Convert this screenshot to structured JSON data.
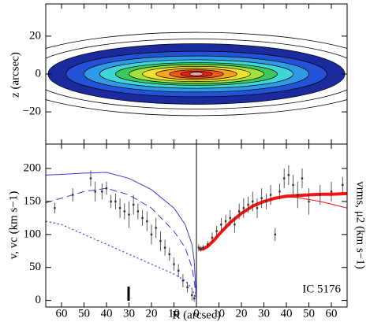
{
  "chart_data": [
    {
      "type": "contour",
      "ylabel": "z (arcsec)",
      "xlim": [
        -67,
        67
      ],
      "xticks": [
        -60,
        -50,
        -40,
        -30,
        -20,
        -10,
        0,
        10,
        20,
        30,
        40,
        50,
        60
      ],
      "ylim": [
        -37,
        37
      ],
      "yticks": [
        {
          "value": -20,
          "label": "−20"
        },
        0,
        20
      ],
      "isophotes": [
        {
          "a": 66,
          "b": 16,
          "color": "#1b2a9c"
        },
        {
          "a": 58,
          "b": 12,
          "color": "#2452d6"
        },
        {
          "a": 50,
          "b": 9.5,
          "color": "#2f9be6"
        },
        {
          "a": 43,
          "b": 7.5,
          "color": "#3fd6d8"
        },
        {
          "a": 36,
          "b": 6,
          "color": "#3cc85c"
        },
        {
          "a": 30,
          "b": 5,
          "color": "#a4e03c"
        },
        {
          "a": 24,
          "b": 4,
          "color": "#f2e02e"
        },
        {
          "a": 18,
          "b": 3,
          "color": "#f3a222"
        },
        {
          "a": 12,
          "b": 2.2,
          "color": "#f0561e"
        },
        {
          "a": 7,
          "b": 1.5,
          "color": "#e42012"
        },
        {
          "a": 3,
          "b": 0.9,
          "color": "#f2a6a6"
        }
      ],
      "contours": [
        {
          "a": 85,
          "b": 22
        },
        {
          "a": 75,
          "b": 18.5
        }
      ]
    },
    {
      "type": "line",
      "xlabel": "R (arcsec)",
      "ylabel": "v, vc (km s−1)",
      "y2label": "vrms, μ2 (km s−1)",
      "annotation": "IC 5176",
      "xlim": [
        -67,
        67
      ],
      "xticks": [
        {
          "value": -60,
          "label": "60"
        },
        {
          "value": -50,
          "label": "50"
        },
        {
          "value": -40,
          "label": "40"
        },
        {
          "value": -30,
          "label": "30"
        },
        {
          "value": -20,
          "label": "20"
        },
        {
          "value": -10,
          "label": "10"
        },
        0,
        10,
        20,
        30,
        40,
        50,
        60
      ],
      "ylim": [
        -10,
        237
      ],
      "yticks": [
        0,
        50,
        100,
        150,
        200
      ],
      "series": [
        {
          "style": "solid",
          "color": "#3a3ad8",
          "width": 1,
          "x": [
            -67,
            -60,
            -50,
            -40,
            -30,
            -20,
            -10,
            -5,
            -2,
            -1,
            0
          ],
          "values": [
            190,
            191,
            193,
            194,
            185,
            168,
            140,
            115,
            85,
            60,
            0
          ]
        },
        {
          "style": "dashed",
          "color": "#3a3ad8",
          "width": 1,
          "x": [
            -67,
            -60,
            -50,
            -40,
            -30,
            -20,
            -10,
            -5,
            -2,
            -1,
            0
          ],
          "values": [
            148,
            155,
            165,
            170,
            160,
            140,
            105,
            80,
            50,
            30,
            0
          ]
        },
        {
          "style": "dotted",
          "color": "#3a3ad8",
          "width": 1.2,
          "x": [
            -67,
            -60,
            -50,
            -40,
            -30,
            -20,
            -10,
            -5,
            -2,
            -1,
            0
          ],
          "values": [
            120,
            115,
            100,
            85,
            70,
            55,
            40,
            30,
            18,
            10,
            0
          ]
        },
        {
          "style": "solid",
          "color": "#ff1010",
          "width": 4,
          "x": [
            1,
            3,
            5,
            8,
            10,
            15,
            20,
            25,
            30,
            35,
            40,
            45,
            50,
            55,
            60,
            67
          ],
          "values": [
            78,
            78,
            82,
            92,
            100,
            118,
            132,
            143,
            150,
            155,
            158,
            159,
            160,
            161,
            161,
            162
          ]
        },
        {
          "style": "solid",
          "color": "#ff1010",
          "width": 1,
          "x": [
            1,
            3,
            5,
            8,
            10,
            15,
            20,
            25,
            30,
            35,
            40,
            45,
            50,
            55,
            60,
            67
          ],
          "values": [
            78,
            78,
            82,
            92,
            100,
            118,
            132,
            143,
            150,
            155,
            157,
            156,
            153,
            150,
            146,
            140
          ]
        },
        {
          "style": "points",
          "color": "#333333",
          "x": [
            -63,
            -55,
            -47,
            -45,
            -42,
            -40,
            -38,
            -36,
            -34,
            -32,
            -30,
            -28,
            -26,
            -24,
            -22,
            -20,
            -18,
            -16,
            -14,
            -12,
            -10,
            -8,
            -6,
            -4,
            -2,
            -1
          ],
          "values": [
            140,
            160,
            185,
            165,
            165,
            170,
            150,
            150,
            140,
            135,
            130,
            145,
            135,
            125,
            120,
            100,
            110,
            90,
            80,
            70,
            55,
            45,
            30,
            20,
            8,
            3
          ],
          "errors": [
            8,
            10,
            12,
            15,
            12,
            10,
            10,
            12,
            15,
            12,
            20,
            15,
            12,
            12,
            15,
            15,
            15,
            15,
            12,
            10,
            10,
            10,
            10,
            8,
            8,
            5
          ]
        },
        {
          "style": "points",
          "color": "#333333",
          "x": [
            1,
            2,
            3,
            5,
            7,
            9,
            11,
            13,
            15,
            17,
            19,
            21,
            23,
            25,
            27,
            29,
            31,
            33,
            35,
            37,
            39,
            41,
            43,
            45,
            47,
            50,
            55,
            60,
            65
          ],
          "values": [
            80,
            78,
            80,
            85,
            95,
            105,
            115,
            120,
            125,
            115,
            135,
            140,
            145,
            150,
            140,
            155,
            150,
            160,
            100,
            165,
            185,
            190,
            175,
            160,
            185,
            150,
            160,
            165,
            175
          ],
          "errors": [
            5,
            4,
            4,
            5,
            8,
            8,
            10,
            10,
            12,
            12,
            12,
            15,
            12,
            15,
            15,
            15,
            12,
            15,
            10,
            12,
            15,
            15,
            15,
            20,
            15,
            20,
            15,
            15,
            12
          ]
        }
      ]
    }
  ]
}
